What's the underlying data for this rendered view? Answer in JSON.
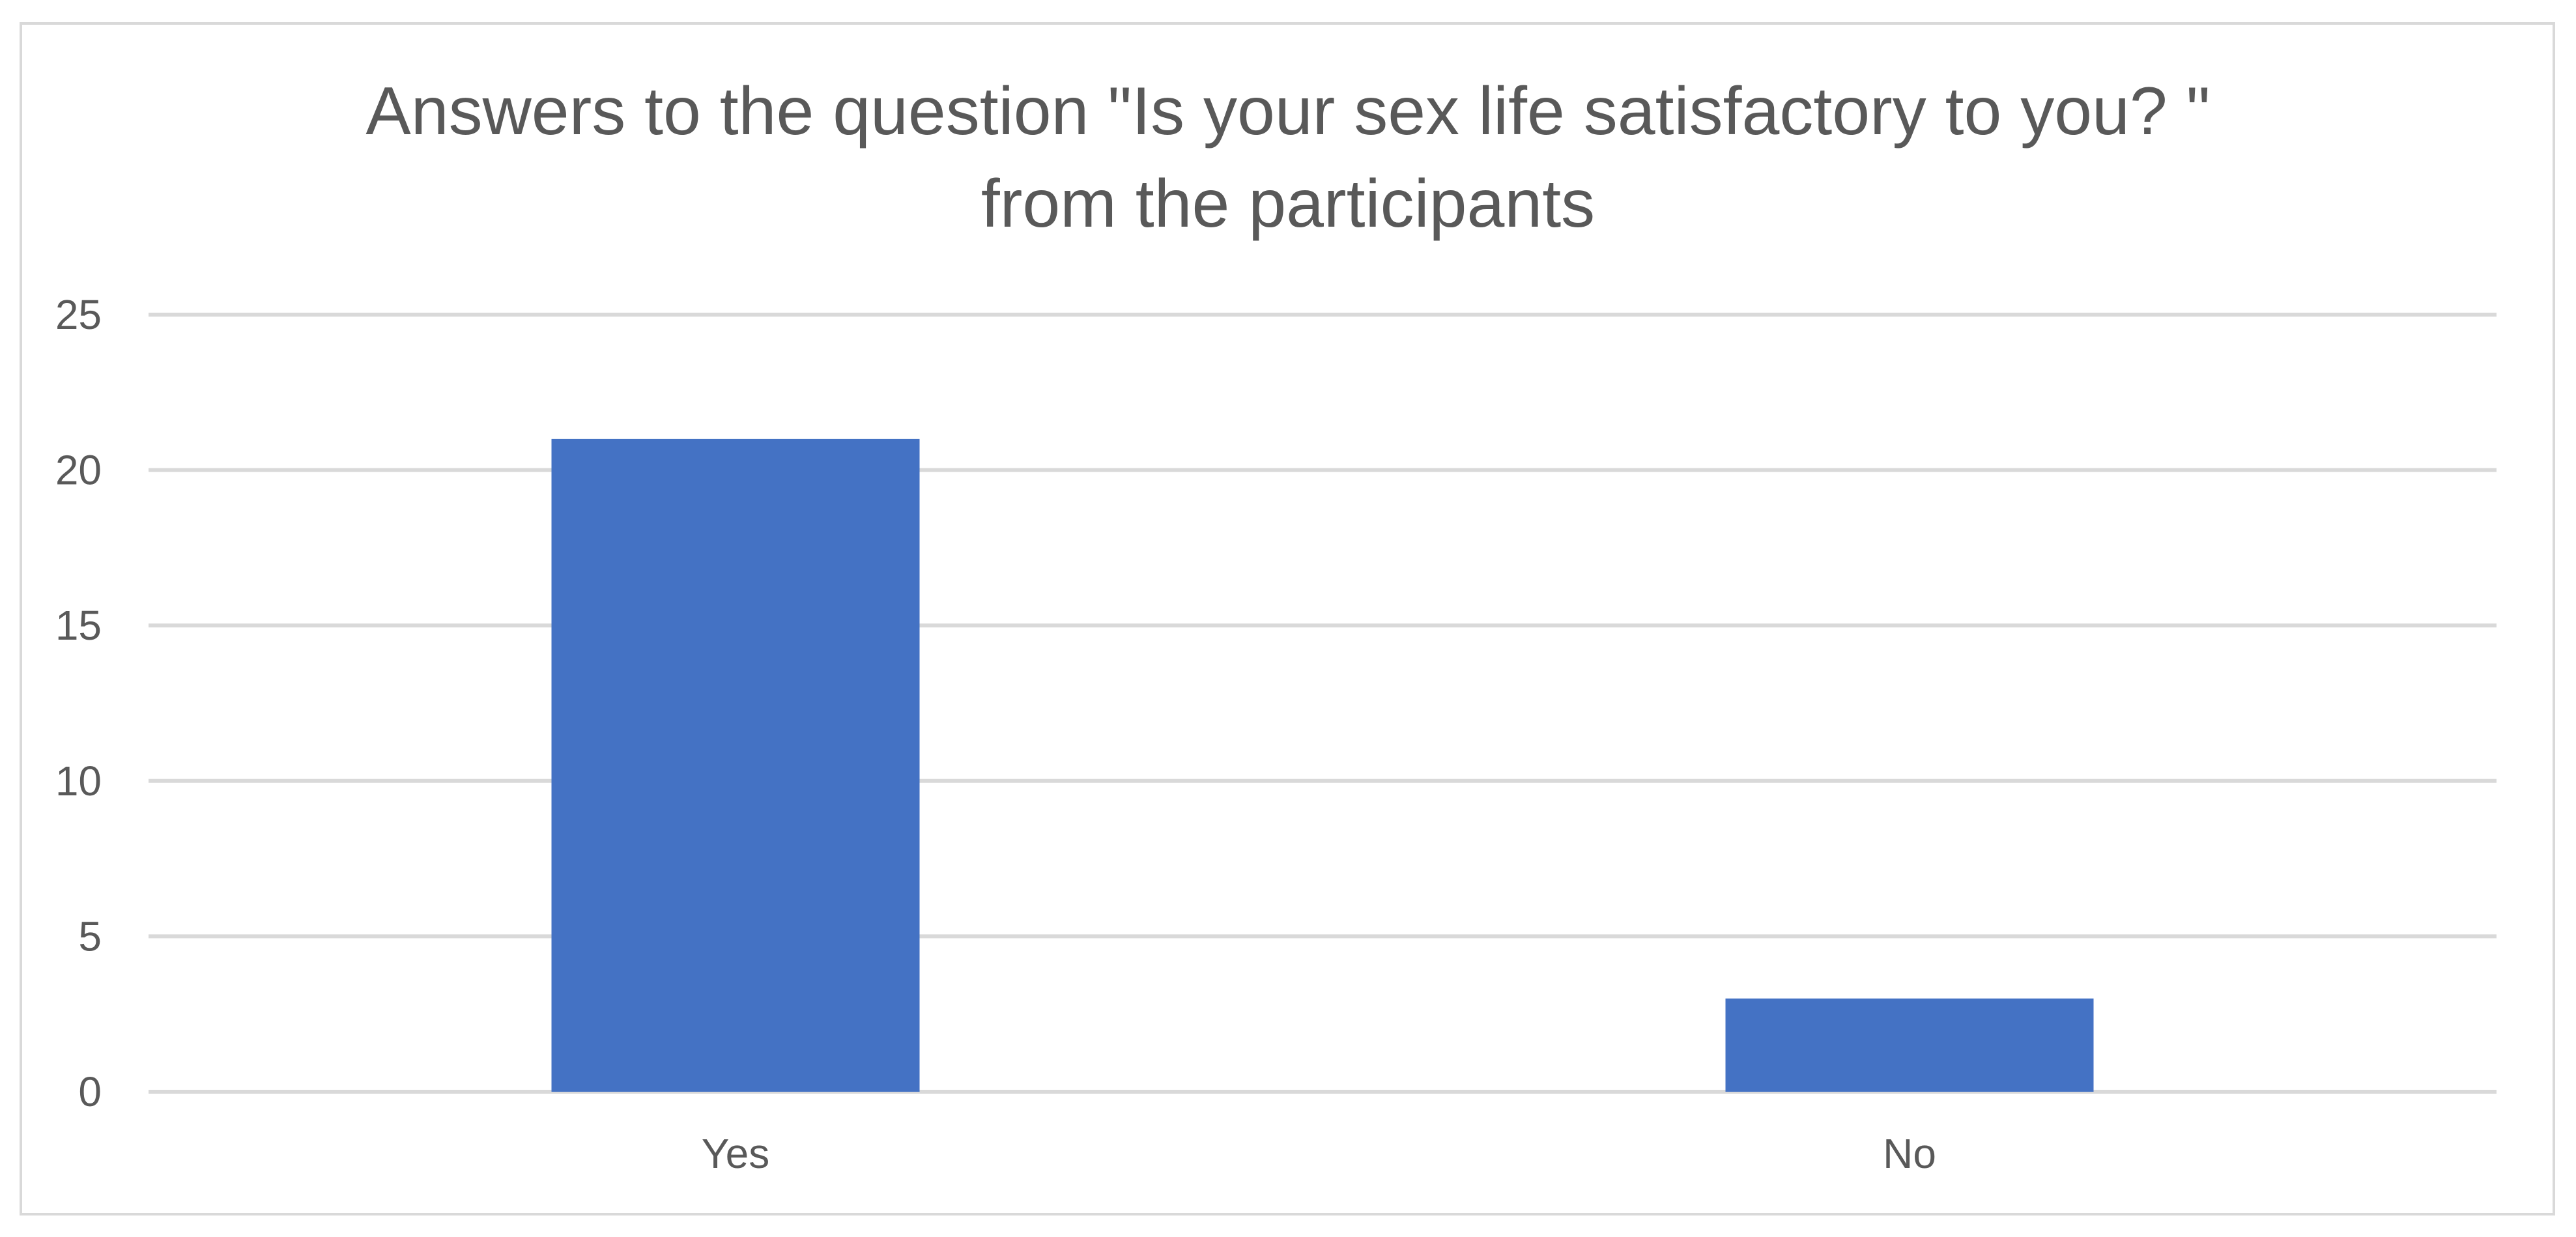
{
  "chart_data": {
    "type": "bar",
    "title_lines": [
      "Answers to the question \"Is your sex life satisfactory to you? \"",
      "from the participants"
    ],
    "categories": [
      "Yes",
      "No"
    ],
    "values": [
      21,
      3
    ],
    "xlabel": "",
    "ylabel": "",
    "ylim": [
      0,
      25
    ],
    "yticks": [
      0,
      5,
      10,
      15,
      20,
      25
    ],
    "grid": true,
    "legend": "none",
    "colors": {
      "bar": "#4472C4",
      "grid": "#d9d9d9",
      "text": "#595959"
    }
  }
}
